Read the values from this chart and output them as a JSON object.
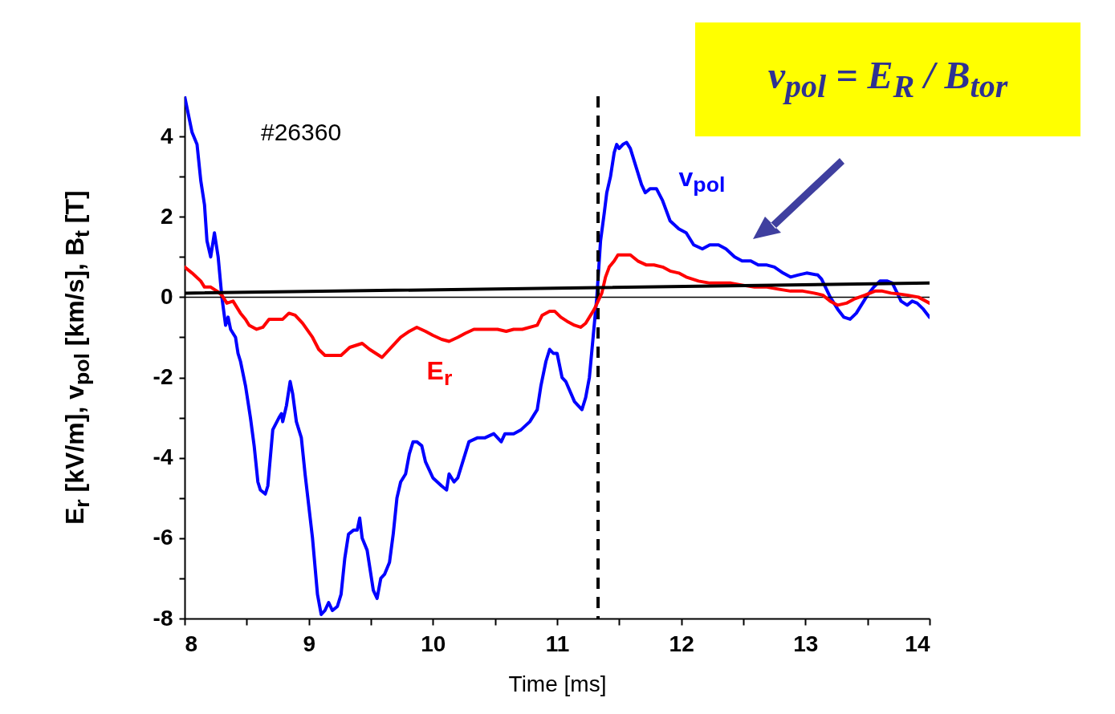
{
  "chart_data": {
    "type": "line",
    "xlabel": "Time [ms]",
    "ylabel": "E$_{r}$ [kV/m], v$_{pol}$ [km/s], B$_{t}$ [T]",
    "xlim": [
      8,
      14
    ],
    "xticks": [
      8,
      {
        "value": 8.5,
        "label": null
      },
      9,
      {
        "value": 9.5,
        "label": null
      },
      10,
      {
        "value": 10.5,
        "label": null
      },
      11,
      {
        "value": 11.5,
        "label": null
      },
      12,
      {
        "value": 12.5,
        "label": null
      },
      13,
      {
        "value": 13.5,
        "label": null
      },
      14
    ],
    "ylim": [
      -8,
      5
    ],
    "yticks": [
      -8,
      {
        "value": -7,
        "label": null
      },
      -6,
      {
        "value": -5,
        "label": null
      },
      -4,
      {
        "value": -3,
        "label": null
      },
      -2,
      {
        "value": -1,
        "label": null
      },
      0,
      {
        "value": 1,
        "label": null
      },
      2,
      {
        "value": 3,
        "label": null
      },
      4
    ],
    "grid": false,
    "marker": "none",
    "line_style": "solid",
    "series": [
      {
        "name": "v$_{pol}$",
        "color": "#0000ff",
        "x": [
          8.0,
          8.06,
          8.1,
          8.13,
          8.16,
          8.18,
          8.21,
          8.23,
          8.24,
          8.27,
          8.3,
          8.33,
          8.35,
          8.37,
          8.41,
          8.43,
          8.45,
          8.49,
          8.53,
          8.56,
          8.59,
          8.61,
          8.65,
          8.67,
          8.71,
          8.76,
          8.78,
          8.79,
          8.82,
          8.85,
          8.87,
          8.9,
          8.94,
          8.97,
          9.03,
          9.07,
          9.1,
          9.13,
          9.16,
          9.19,
          9.23,
          9.26,
          9.29,
          9.32,
          9.36,
          9.39,
          9.41,
          9.43,
          9.47,
          9.52,
          9.55,
          9.58,
          9.61,
          9.65,
          9.68,
          9.71,
          9.74,
          9.78,
          9.81,
          9.84,
          9.87,
          9.91,
          9.94,
          9.97,
          10.0,
          10.07,
          10.11,
          10.13,
          10.17,
          10.2,
          10.25,
          10.29,
          10.36,
          10.42,
          10.49,
          10.55,
          10.58,
          10.65,
          10.71,
          10.78,
          10.84,
          10.87,
          10.91,
          10.94,
          10.97,
          11.0,
          11.04,
          11.07,
          11.14,
          11.17,
          11.2,
          11.23,
          11.26,
          11.29,
          11.32,
          11.35,
          11.38,
          11.4,
          11.43,
          11.46,
          11.48,
          11.5,
          11.53,
          11.56,
          11.59,
          11.65,
          11.68,
          11.71,
          11.75,
          11.8,
          11.85,
          11.91,
          11.98,
          12.04,
          12.1,
          12.17,
          12.23,
          12.3,
          12.36,
          12.43,
          12.49,
          12.56,
          12.62,
          12.69,
          12.75,
          12.82,
          12.88,
          12.94,
          13.01,
          13.1,
          13.13,
          13.2,
          13.26,
          13.31,
          13.36,
          13.41,
          13.47,
          13.5,
          13.55,
          13.6,
          13.66,
          13.7,
          13.74,
          13.77,
          13.82,
          13.86,
          13.9,
          13.95,
          14.0
        ],
        "values": [
          5.0,
          4.1,
          3.8,
          2.9,
          2.3,
          1.4,
          1.0,
          1.4,
          1.6,
          1.0,
          0,
          -0.7,
          -0.5,
          -0.8,
          -1.0,
          -1.4,
          -1.6,
          -2.2,
          -3.0,
          -3.7,
          -4.6,
          -4.8,
          -4.9,
          -4.7,
          -3.3,
          -3.0,
          -2.9,
          -3.1,
          -2.7,
          -2.1,
          -2.4,
          -3.1,
          -3.5,
          -4.4,
          -6.0,
          -7.4,
          -7.9,
          -7.8,
          -7.6,
          -7.8,
          -7.7,
          -7.4,
          -6.5,
          -5.9,
          -5.8,
          -5.8,
          -5.5,
          -6.0,
          -6.3,
          -7.3,
          -7.5,
          -7.0,
          -6.9,
          -6.6,
          -5.9,
          -5.0,
          -4.6,
          -4.4,
          -3.9,
          -3.6,
          -3.6,
          -3.7,
          -4.1,
          -4.3,
          -4.5,
          -4.7,
          -4.8,
          -4.4,
          -4.6,
          -4.5,
          -4.0,
          -3.6,
          -3.5,
          -3.5,
          -3.4,
          -3.6,
          -3.4,
          -3.4,
          -3.3,
          -3.1,
          -2.8,
          -2.2,
          -1.6,
          -1.3,
          -1.4,
          -1.4,
          -2.0,
          -2.1,
          -2.6,
          -2.7,
          -2.8,
          -2.5,
          -2.0,
          -1.0,
          0,
          1.4,
          2.1,
          2.6,
          3.0,
          3.6,
          3.8,
          3.7,
          3.8,
          3.85,
          3.7,
          3.1,
          2.8,
          2.6,
          2.7,
          2.7,
          2.4,
          1.9,
          1.7,
          1.6,
          1.3,
          1.2,
          1.3,
          1.3,
          1.2,
          1.0,
          0.9,
          0.9,
          0.8,
          0.8,
          0.75,
          0.6,
          0.5,
          0.55,
          0.6,
          0.55,
          0.45,
          0,
          -0.3,
          -0.5,
          -0.55,
          -0.4,
          -0.1,
          0.05,
          0.25,
          0.4,
          0.4,
          0.35,
          0.1,
          -0.1,
          -0.2,
          -0.1,
          -0.15,
          -0.3,
          -0.5
        ]
      },
      {
        "name": "E$_{r}$",
        "color": "#ff0000",
        "x": [
          8.0,
          8.06,
          8.13,
          8.16,
          8.21,
          8.26,
          8.3,
          8.34,
          8.39,
          8.45,
          8.49,
          8.52,
          8.58,
          8.63,
          8.68,
          8.74,
          8.79,
          8.84,
          8.89,
          8.95,
          9.03,
          9.08,
          9.13,
          9.2,
          9.26,
          9.33,
          9.38,
          9.43,
          9.49,
          9.54,
          9.59,
          9.68,
          9.74,
          9.81,
          9.87,
          9.94,
          10.0,
          10.07,
          10.13,
          10.2,
          10.26,
          10.33,
          10.39,
          10.46,
          10.52,
          10.59,
          10.65,
          10.72,
          10.84,
          10.88,
          10.94,
          10.98,
          11.03,
          11.08,
          11.14,
          11.19,
          11.23,
          11.3,
          11.36,
          11.39,
          11.42,
          11.46,
          11.49,
          11.59,
          11.65,
          11.72,
          11.78,
          11.85,
          11.91,
          11.98,
          12.04,
          12.14,
          12.23,
          12.4,
          12.49,
          12.59,
          12.69,
          12.78,
          12.88,
          12.98,
          13.07,
          13.14,
          13.2,
          13.26,
          13.33,
          13.39,
          13.48,
          13.56,
          13.62,
          13.69,
          13.75,
          13.82,
          13.91,
          14.0
        ],
        "values": [
          0.75,
          0.6,
          0.4,
          0.25,
          0.25,
          0.15,
          0.05,
          -0.15,
          -0.1,
          -0.4,
          -0.55,
          -0.7,
          -0.8,
          -0.75,
          -0.55,
          -0.55,
          -0.55,
          -0.4,
          -0.45,
          -0.65,
          -1.0,
          -1.3,
          -1.45,
          -1.45,
          -1.45,
          -1.25,
          -1.2,
          -1.15,
          -1.3,
          -1.4,
          -1.5,
          -1.2,
          -1.0,
          -0.85,
          -0.75,
          -0.85,
          -0.95,
          -1.05,
          -1.1,
          -1.0,
          -0.9,
          -0.8,
          -0.8,
          -0.8,
          -0.8,
          -0.85,
          -0.8,
          -0.8,
          -0.7,
          -0.45,
          -0.35,
          -0.35,
          -0.5,
          -0.6,
          -0.7,
          -0.75,
          -0.65,
          -0.3,
          0.1,
          0.5,
          0.75,
          0.9,
          1.05,
          1.05,
          0.9,
          0.8,
          0.8,
          0.75,
          0.65,
          0.6,
          0.5,
          0.4,
          0.35,
          0.35,
          0.3,
          0.25,
          0.25,
          0.2,
          0.15,
          0.15,
          0.1,
          0.05,
          -0.1,
          -0.2,
          -0.15,
          -0.05,
          0.05,
          0.15,
          0.15,
          0.1,
          0.08,
          0.05,
          0,
          -0.15
        ]
      },
      {
        "color": "#000000",
        "x": [
          8,
          14
        ],
        "values": [
          0.1,
          0.35
        ]
      }
    ],
    "ref_lines": [
      {
        "axis": "x",
        "value": 11.33,
        "color": "#000000",
        "line_style": "dashed"
      },
      {
        "axis": "y",
        "value": 0,
        "color": "#000000",
        "line_style": "solid"
      }
    ],
    "annotations": [
      "#26360",
      "v$_{pol}$ = E$_{R}$ / B$_{tor}$"
    ]
  }
}
